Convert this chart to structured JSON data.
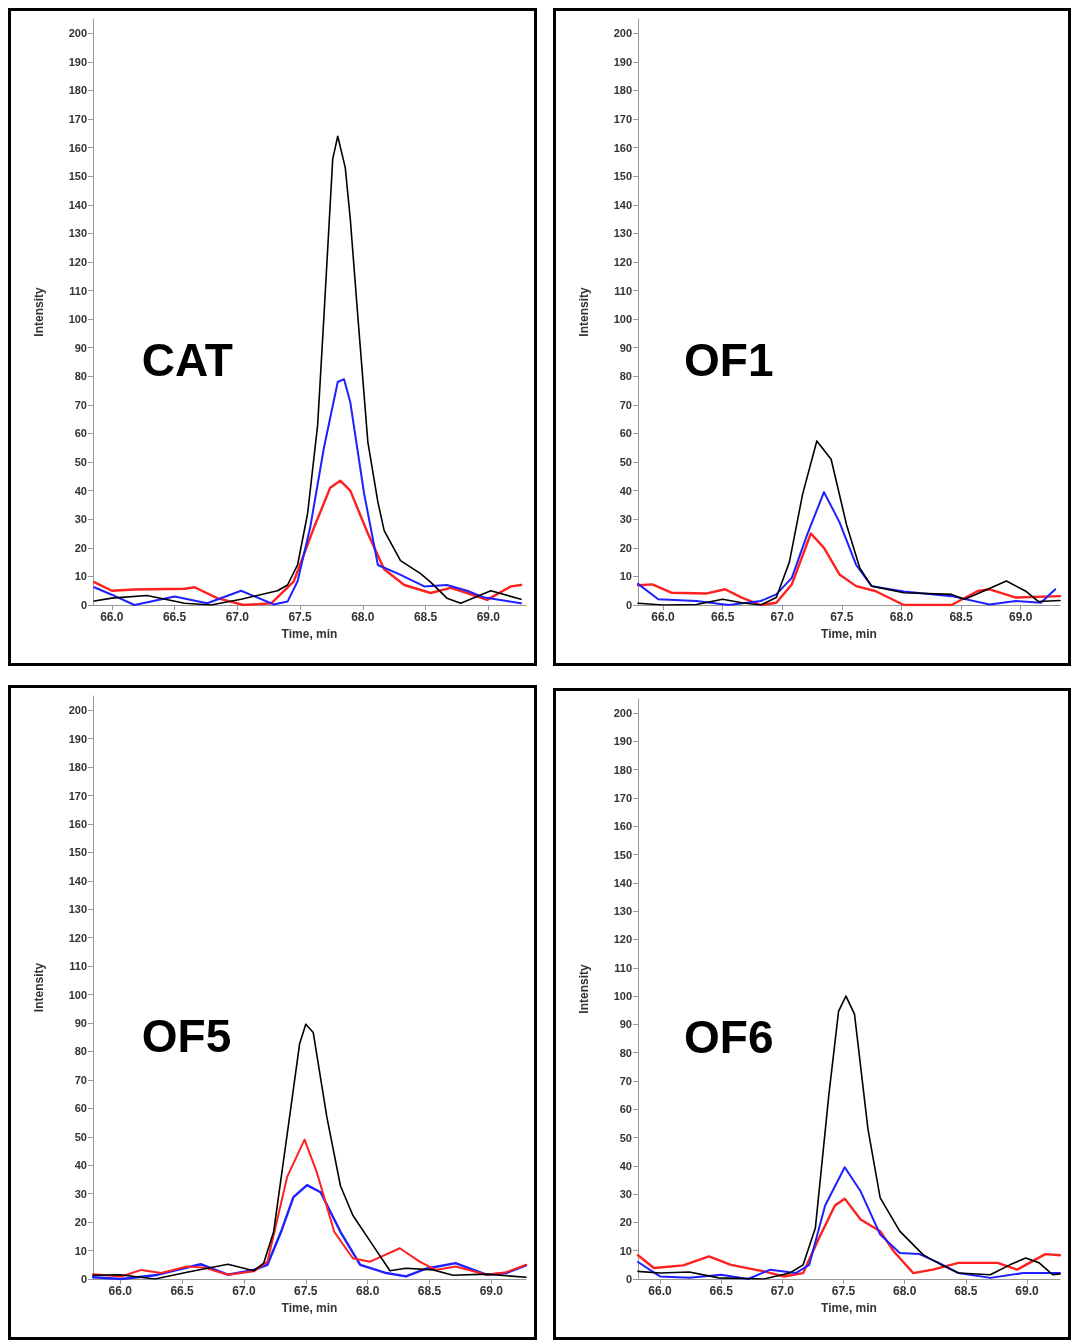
{
  "chart_data": [
    {
      "type": "line",
      "annotations": [
        "CAT"
      ],
      "xlabel": "Time, min",
      "ylabel": "Intensity",
      "xlim": [
        65.85,
        69.3
      ],
      "xticks": [
        {
          "value": 66,
          "label": "66.0"
        },
        {
          "value": 66.5,
          "label": "66.5"
        },
        {
          "value": 67,
          "label": "67.0"
        },
        {
          "value": 67.5,
          "label": "67.5"
        },
        {
          "value": 68,
          "label": "68.0"
        },
        {
          "value": 68.5,
          "label": "68.5"
        },
        {
          "value": 69,
          "label": "69.0"
        }
      ],
      "ylim": [
        0,
        205
      ],
      "yticks": [
        0,
        10,
        20,
        30,
        40,
        50,
        60,
        70,
        80,
        90,
        100,
        110,
        120,
        130,
        140,
        150,
        160,
        170,
        180,
        190,
        200
      ],
      "series": [
        {
          "color": "#ff2020",
          "x": [
            65.86,
            66.0,
            66.18,
            66.58,
            66.66,
            66.84,
            67.05,
            67.27,
            67.45,
            67.61,
            67.74,
            67.82,
            67.9,
            68.04,
            68.17,
            68.33,
            68.54,
            68.7,
            68.83,
            68.99,
            69.18,
            69.26
          ],
          "values": [
            8,
            5,
            5.4,
            5.7,
            6.2,
            2.4,
            0,
            0.6,
            8.3,
            27,
            41,
            43.5,
            40,
            25,
            12.5,
            7,
            4.2,
            6,
            4.2,
            1.8,
            6.5,
            7
          ]
        },
        {
          "color": "#2020ff",
          "x": [
            65.86,
            66.0,
            66.18,
            66.5,
            66.76,
            67.03,
            67.29,
            67.4,
            67.48,
            67.58,
            67.69,
            67.8,
            67.85,
            67.9,
            68.01,
            68.12,
            68.28,
            68.49,
            68.67,
            68.83,
            68.97,
            69.26
          ],
          "values": [
            6.2,
            3.6,
            0,
            3,
            0.6,
            5,
            0.2,
            1.2,
            8.3,
            27,
            55,
            78,
            79,
            71,
            39,
            14,
            11,
            6.5,
            7,
            5,
            2.6,
            0.6
          ]
        },
        {
          "color": "#000000",
          "x": [
            65.86,
            66.0,
            66.28,
            66.58,
            66.79,
            67.03,
            67.32,
            67.4,
            67.48,
            67.56,
            67.64,
            67.69,
            67.76,
            67.8,
            67.86,
            67.9,
            67.96,
            68.04,
            68.12,
            68.17,
            68.3,
            68.46,
            68.54,
            68.67,
            68.78,
            69.02,
            69.26
          ],
          "values": [
            1.4,
            2.4,
            3.3,
            0.6,
            0,
            2,
            5,
            7,
            14,
            32,
            63,
            101,
            156,
            164,
            153,
            135,
            101,
            57,
            36,
            26,
            15.5,
            11,
            8,
            2.4,
            0.6,
            5,
            2
          ]
        }
      ]
    },
    {
      "type": "line",
      "annotations": [
        "OF1"
      ],
      "xlabel": "Time, min",
      "ylabel": "Intensity",
      "xlim": [
        65.79,
        69.33
      ],
      "xticks": [
        {
          "value": 66,
          "label": "66.0"
        },
        {
          "value": 66.5,
          "label": "66.5"
        },
        {
          "value": 67,
          "label": "67.0"
        },
        {
          "value": 67.5,
          "label": "67.5"
        },
        {
          "value": 68,
          "label": "68.0"
        },
        {
          "value": 68.5,
          "label": "68.5"
        },
        {
          "value": 69,
          "label": "69.0"
        }
      ],
      "ylim": [
        0,
        205
      ],
      "yticks": [
        0,
        10,
        20,
        30,
        40,
        50,
        60,
        70,
        80,
        90,
        100,
        110,
        120,
        130,
        140,
        150,
        160,
        170,
        180,
        190,
        200
      ],
      "series": [
        {
          "color": "#ff2020",
          "x": [
            65.79,
            65.91,
            66.07,
            66.36,
            66.52,
            66.66,
            66.82,
            66.95,
            67.08,
            67.24,
            67.35,
            67.48,
            67.62,
            67.78,
            68.02,
            68.42,
            68.64,
            68.74,
            68.96,
            69.33
          ],
          "values": [
            6.9,
            7.2,
            4.3,
            4,
            5.5,
            2.6,
            0,
            0.8,
            7.2,
            25,
            20,
            10.7,
            6.6,
            4.9,
            0,
            0,
            4.9,
            5.5,
            2.6,
            3.1
          ]
        },
        {
          "color": "#2020ff",
          "x": [
            65.79,
            65.96,
            66.28,
            66.55,
            66.82,
            66.95,
            67.08,
            67.21,
            67.35,
            67.48,
            67.62,
            67.75,
            68.02,
            68.42,
            68.74,
            68.96,
            69.17,
            69.29
          ],
          "values": [
            7.4,
            2,
            1.4,
            0,
            1.4,
            3.7,
            9.5,
            24.7,
            39.5,
            29,
            14,
            6.6,
            4.7,
            3.1,
            0.2,
            1.4,
            0.8,
            5.5
          ]
        },
        {
          "color": "#000000",
          "x": [
            65.79,
            66.0,
            66.28,
            66.5,
            66.66,
            66.82,
            66.95,
            67.06,
            67.17,
            67.29,
            67.41,
            67.54,
            67.65,
            67.75,
            68.02,
            68.42,
            68.53,
            68.69,
            68.88,
            69.04,
            69.15,
            69.33
          ],
          "values": [
            0.6,
            0,
            0.2,
            2,
            0.8,
            0,
            2.6,
            15,
            38.6,
            57.4,
            51,
            28,
            13,
            6.6,
            4.3,
            3.7,
            2,
            4.9,
            8.4,
            4.9,
            1.2,
            1.6
          ]
        }
      ]
    },
    {
      "type": "line",
      "annotations": [
        "OF5"
      ],
      "xlabel": "Time, min",
      "ylabel": "Intensity",
      "xlim": [
        65.78,
        69.28
      ],
      "xticks": [
        {
          "value": 66,
          "label": "66.0"
        },
        {
          "value": 66.5,
          "label": "66.5"
        },
        {
          "value": 67,
          "label": "67.0"
        },
        {
          "value": 67.5,
          "label": "67.5"
        },
        {
          "value": 68,
          "label": "68.0"
        },
        {
          "value": 68.5,
          "label": "68.5"
        },
        {
          "value": 69,
          "label": "69.0"
        }
      ],
      "ylim": [
        0,
        205
      ],
      "yticks": [
        0,
        10,
        20,
        30,
        40,
        50,
        60,
        70,
        80,
        90,
        100,
        110,
        120,
        130,
        140,
        150,
        160,
        170,
        180,
        190,
        200
      ],
      "series": [
        {
          "color": "#2020ff",
          "x": [
            65.78,
            66.01,
            66.28,
            66.65,
            66.87,
            67.08,
            67.19,
            67.3,
            67.4,
            67.51,
            67.62,
            67.78,
            67.94,
            68.15,
            68.31,
            68.47,
            68.71,
            68.96,
            69.12,
            69.28
          ],
          "values": [
            0.6,
            0,
            1.3,
            5.2,
            1.5,
            3.2,
            5,
            16.6,
            28.8,
            33,
            30.5,
            16.6,
            5,
            2.1,
            0.9,
            3.6,
            5.6,
            1.5,
            2.1,
            4.8
          ]
        },
        {
          "color": "#ff2020",
          "x": [
            65.78,
            66.01,
            66.17,
            66.33,
            66.54,
            66.68,
            66.87,
            67.08,
            67.19,
            67.35,
            67.49,
            67.59,
            67.73,
            67.88,
            68.02,
            68.26,
            68.42,
            68.55,
            68.71,
            68.96,
            69.12,
            69.28
          ],
          "values": [
            1.7,
            0.9,
            3.2,
            2.1,
            4.4,
            4,
            1.5,
            2.7,
            6.1,
            36,
            49,
            37.4,
            16.6,
            7.3,
            6.1,
            10.8,
            6.1,
            3.2,
            4.4,
            1.5,
            2.4,
            5
          ]
        },
        {
          "color": "#000000",
          "x": [
            65.78,
            66.0,
            66.28,
            66.54,
            66.87,
            67.08,
            67.16,
            67.24,
            67.35,
            67.45,
            67.5,
            67.56,
            67.67,
            67.78,
            67.88,
            68.04,
            68.18,
            68.31,
            68.53,
            68.69,
            68.96,
            69.28
          ],
          "values": [
            1.3,
            1.5,
            0,
            2.4,
            5.2,
            2.9,
            5.6,
            16.6,
            51,
            82.7,
            89.6,
            86.7,
            57,
            32.8,
            22.4,
            12,
            2.9,
            3.8,
            3.2,
            1.3,
            1.7,
            0.6
          ]
        }
      ]
    },
    {
      "type": "line",
      "annotations": [
        "OF6"
      ],
      "xlabel": "Time, min",
      "ylabel": "Intensity",
      "xlim": [
        65.82,
        69.27
      ],
      "xticks": [
        {
          "value": 66,
          "label": "66.0"
        },
        {
          "value": 66.5,
          "label": "66.5"
        },
        {
          "value": 67,
          "label": "67.0"
        },
        {
          "value": 67.5,
          "label": "67.5"
        },
        {
          "value": 68,
          "label": "68.0"
        },
        {
          "value": 68.5,
          "label": "68.5"
        },
        {
          "value": 69,
          "label": "69.0"
        }
      ],
      "ylim": [
        0,
        205
      ],
      "yticks": [
        0,
        10,
        20,
        30,
        40,
        50,
        60,
        70,
        80,
        90,
        100,
        110,
        120,
        130,
        140,
        150,
        160,
        170,
        180,
        190,
        200
      ],
      "series": [
        {
          "color": "#ff2020",
          "x": [
            65.82,
            65.95,
            66.19,
            66.4,
            66.58,
            66.85,
            67.01,
            67.17,
            67.3,
            67.43,
            67.51,
            67.64,
            67.8,
            67.91,
            68.07,
            68.23,
            68.44,
            68.76,
            68.92,
            69.15,
            69.27
          ],
          "values": [
            8.4,
            3.9,
            4.8,
            8,
            5,
            2.7,
            0.9,
            2.1,
            14.5,
            26,
            28.4,
            21,
            16.9,
            9.8,
            2.1,
            3.3,
            5.7,
            5.7,
            3.3,
            8.8,
            8.4
          ]
        },
        {
          "color": "#2020ff",
          "x": [
            65.82,
            66.0,
            66.24,
            66.5,
            66.72,
            66.9,
            67.11,
            67.22,
            67.35,
            67.51,
            67.64,
            67.8,
            67.96,
            68.12,
            68.28,
            68.44,
            68.7,
            68.97,
            69.27
          ],
          "values": [
            6,
            0.9,
            0.4,
            1.5,
            0,
            3.3,
            2.1,
            5,
            26,
            39.5,
            31,
            15.7,
            9.2,
            8.8,
            5.7,
            2.1,
            0.4,
            2.1,
            2.1
          ]
        },
        {
          "color": "#000000",
          "x": [
            65.82,
            66.0,
            66.24,
            66.48,
            66.85,
            67.06,
            67.17,
            67.27,
            67.38,
            67.46,
            67.52,
            67.59,
            67.7,
            67.8,
            67.96,
            68.15,
            68.3,
            68.44,
            68.7,
            68.86,
            68.99,
            69.1,
            69.21,
            69.27
          ],
          "values": [
            2.7,
            2.1,
            2.5,
            0.4,
            0,
            2.1,
            5,
            18,
            65,
            94.7,
            100,
            93.6,
            53,
            28.7,
            16.9,
            8.6,
            5,
            2.1,
            1.5,
            5,
            7.4,
            5.7,
            1.5,
            1.8
          ]
        }
      ]
    }
  ]
}
